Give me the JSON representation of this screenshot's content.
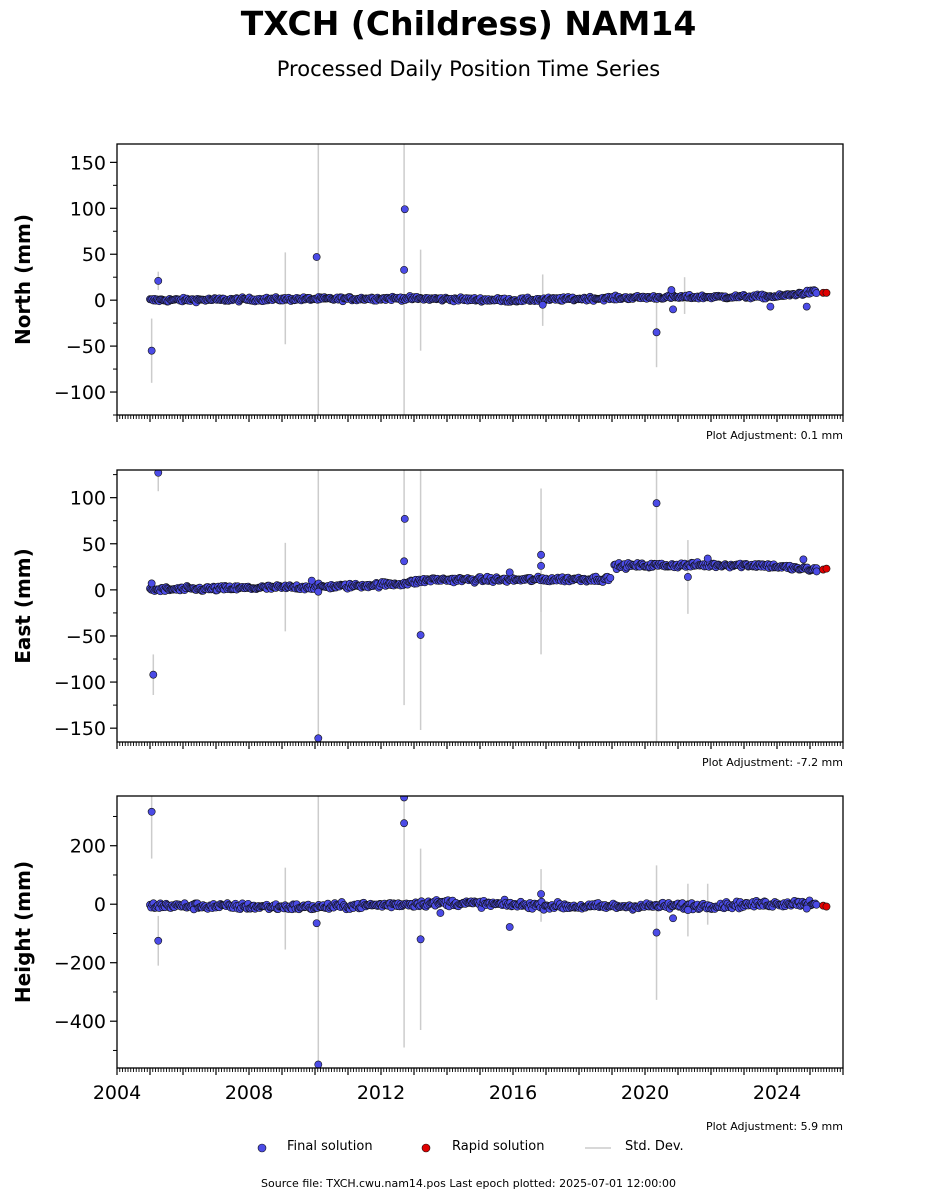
{
  "title": "TXCH (Childress) NAM14",
  "subtitle": "Processed Daily Position Time Series",
  "footer": "Source file: TXCH.cwu.nam14.pos  Last epoch plotted: 2025-07-01 12:00:00",
  "legend": {
    "final_label": "Final solution",
    "rapid_label": "Rapid solution",
    "std_label": "Std. Dev.",
    "final_color": "#4b4be6",
    "rapid_color": "#e00000",
    "std_color": "#cccccc"
  },
  "chart_data": [
    {
      "type": "scatter",
      "ylabel": "North (mm)",
      "xlim": [
        2004,
        2026
      ],
      "ylim": [
        -125,
        170
      ],
      "yticks": [
        -100,
        -50,
        0,
        50,
        100,
        150
      ],
      "xticks": [
        2004,
        2008,
        2012,
        2016,
        2020,
        2024
      ],
      "adjustment": "Plot Adjustment: 0.1 mm",
      "trend": [
        [
          2005.0,
          0
        ],
        [
          2012.7,
          2
        ],
        [
          2016.0,
          0
        ],
        [
          2020.0,
          3
        ],
        [
          2024.0,
          4
        ],
        [
          2025.1,
          9
        ]
      ],
      "noise": 1.5,
      "outliers": [
        {
          "x": 2005.05,
          "y": -55,
          "err": 35
        },
        {
          "x": 2005.25,
          "y": 21,
          "err": 10
        },
        {
          "x": 2010.05,
          "y": 47,
          "err": 0
        },
        {
          "x": 2012.7,
          "y": 33,
          "err": 0
        },
        {
          "x": 2012.72,
          "y": 99,
          "err": 0
        },
        {
          "x": 2016.9,
          "y": -5,
          "err": 15
        },
        {
          "x": 2020.35,
          "y": -35,
          "err": 38
        },
        {
          "x": 2020.8,
          "y": 11,
          "err": 0
        },
        {
          "x": 2020.85,
          "y": -10,
          "err": 0
        },
        {
          "x": 2023.8,
          "y": -7,
          "err": 0
        },
        {
          "x": 2024.9,
          "y": -7,
          "err": 0
        }
      ],
      "errbars": [
        {
          "x": 2009.1,
          "y": 2,
          "err": 50
        },
        {
          "x": 2010.1,
          "y": 2,
          "err": 200
        },
        {
          "x": 2012.7,
          "y": 2,
          "err": 200
        },
        {
          "x": 2013.2,
          "y": 0,
          "err": 55
        },
        {
          "x": 2016.9,
          "y": 0,
          "err": 28
        },
        {
          "x": 2021.2,
          "y": 5,
          "err": 20
        }
      ],
      "rapid": [
        {
          "x": 2025.4,
          "y": 8
        },
        {
          "x": 2025.5,
          "y": 8
        }
      ]
    },
    {
      "type": "scatter",
      "ylabel": "East (mm)",
      "xlim": [
        2004,
        2026
      ],
      "ylim": [
        -165,
        130
      ],
      "yticks": [
        -150,
        -100,
        -50,
        0,
        50,
        100
      ],
      "xticks": [
        2004,
        2008,
        2012,
        2016,
        2020,
        2024
      ],
      "adjustment": "Plot Adjustment: -7.2 mm",
      "trend": [
        [
          2005.0,
          0
        ],
        [
          2008.0,
          2
        ],
        [
          2011.0,
          4
        ],
        [
          2012.7,
          7
        ],
        [
          2013.5,
          11
        ],
        [
          2016.0,
          11
        ],
        [
          2018.95,
          12
        ],
        [
          2019.05,
          26
        ],
        [
          2021.5,
          27
        ],
        [
          2023.5,
          27
        ],
        [
          2025.0,
          22
        ]
      ],
      "noise": 2,
      "outliers": [
        {
          "x": 2005.05,
          "y": 7,
          "err": 0
        },
        {
          "x": 2005.1,
          "y": -92,
          "err": 22
        },
        {
          "x": 2005.25,
          "y": 127,
          "err": 20
        },
        {
          "x": 2009.9,
          "y": 10,
          "err": 0
        },
        {
          "x": 2010.1,
          "y": -2,
          "err": 0
        },
        {
          "x": 2010.1,
          "y": -161,
          "err": 0
        },
        {
          "x": 2012.7,
          "y": 31,
          "err": 0
        },
        {
          "x": 2012.72,
          "y": 77,
          "err": 0
        },
        {
          "x": 2013.2,
          "y": -49,
          "err": 0
        },
        {
          "x": 2015.9,
          "y": 19,
          "err": 0
        },
        {
          "x": 2016.85,
          "y": 38,
          "err": 0
        },
        {
          "x": 2016.85,
          "y": 26,
          "err": 50
        },
        {
          "x": 2018.95,
          "y": 13,
          "err": 0
        },
        {
          "x": 2020.35,
          "y": 94,
          "err": 0
        },
        {
          "x": 2021.3,
          "y": 14,
          "err": 40
        },
        {
          "x": 2021.9,
          "y": 34,
          "err": 0
        },
        {
          "x": 2024.8,
          "y": 33,
          "err": 0
        },
        {
          "x": 2025.2,
          "y": 20,
          "err": 0
        }
      ],
      "errbars": [
        {
          "x": 2009.1,
          "y": 3,
          "err": 48
        },
        {
          "x": 2010.1,
          "y": 3,
          "err": 200
        },
        {
          "x": 2012.7,
          "y": 5,
          "err": 130
        },
        {
          "x": 2013.2,
          "y": 8,
          "err": 160
        },
        {
          "x": 2016.85,
          "y": 20,
          "err": 90
        },
        {
          "x": 2020.35,
          "y": 26,
          "err": 200
        }
      ],
      "rapid": [
        {
          "x": 2025.4,
          "y": 22
        },
        {
          "x": 2025.5,
          "y": 23
        }
      ]
    },
    {
      "type": "scatter",
      "ylabel": "Height (mm)",
      "xlim": [
        2004,
        2026
      ],
      "ylim": [
        -560,
        370
      ],
      "yticks": [
        -400,
        -200,
        0,
        200
      ],
      "xticks": [
        2004,
        2008,
        2012,
        2016,
        2020,
        2024
      ],
      "xticklabels": [
        "2004",
        "2008",
        "2012",
        "2016",
        "2020",
        "2024"
      ],
      "adjustment": "Plot Adjustment: 5.9 mm",
      "trend": [
        [
          2005.0,
          -5
        ],
        [
          2010.0,
          -10
        ],
        [
          2014.0,
          5
        ],
        [
          2018.0,
          -8
        ],
        [
          2022.0,
          -5
        ],
        [
          2025.0,
          5
        ]
      ],
      "noise": 8,
      "outliers": [
        {
          "x": 2005.05,
          "y": 316,
          "err": 160
        },
        {
          "x": 2005.25,
          "y": -125,
          "err": 85
        },
        {
          "x": 2010.05,
          "y": -65,
          "err": 0
        },
        {
          "x": 2010.1,
          "y": -548,
          "err": 0
        },
        {
          "x": 2012.7,
          "y": 365,
          "err": 0
        },
        {
          "x": 2012.7,
          "y": 277,
          "err": 0
        },
        {
          "x": 2013.2,
          "y": -120,
          "err": 0
        },
        {
          "x": 2013.8,
          "y": -30,
          "err": 0
        },
        {
          "x": 2015.9,
          "y": -78,
          "err": 0
        },
        {
          "x": 2016.85,
          "y": 35,
          "err": 0
        },
        {
          "x": 2020.35,
          "y": -97,
          "err": 0
        },
        {
          "x": 2020.85,
          "y": -48,
          "err": 0
        },
        {
          "x": 2021.3,
          "y": -20,
          "err": 0
        },
        {
          "x": 2024.9,
          "y": -15,
          "err": 0
        }
      ],
      "errbars": [
        {
          "x": 2009.1,
          "y": -15,
          "err": 140
        },
        {
          "x": 2010.1,
          "y": -15,
          "err": 550
        },
        {
          "x": 2012.7,
          "y": -10,
          "err": 480
        },
        {
          "x": 2013.2,
          "y": -120,
          "err": 310
        },
        {
          "x": 2016.85,
          "y": 30,
          "err": 90
        },
        {
          "x": 2020.35,
          "y": -97,
          "err": 230
        },
        {
          "x": 2021.3,
          "y": -20,
          "err": 90
        },
        {
          "x": 2021.9,
          "y": 0,
          "err": 70
        }
      ],
      "rapid": [
        {
          "x": 2025.4,
          "y": -5
        },
        {
          "x": 2025.5,
          "y": -8
        }
      ]
    }
  ]
}
